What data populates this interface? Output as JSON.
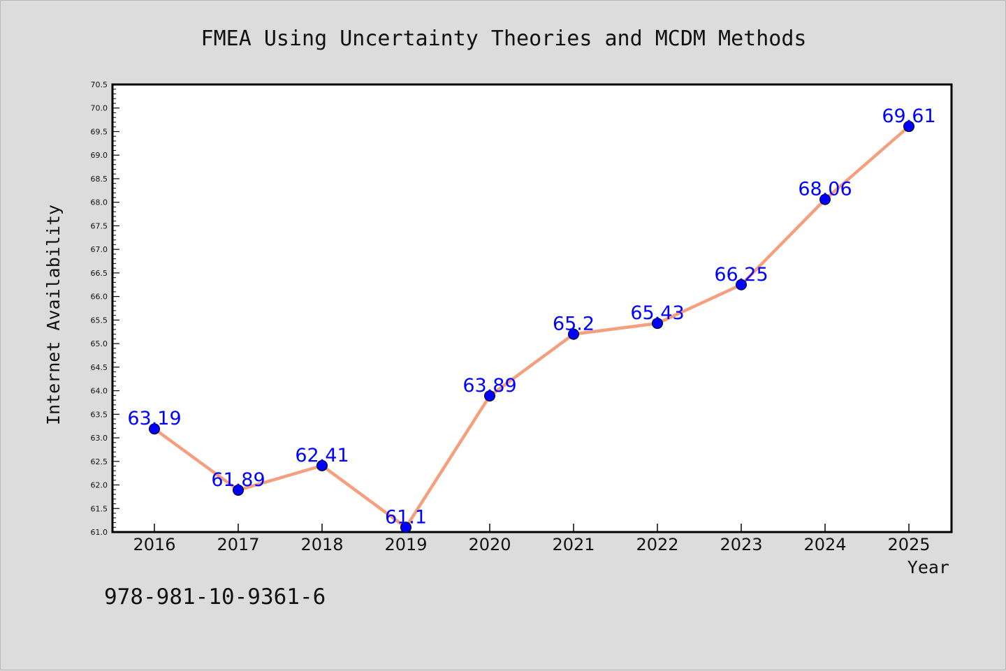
{
  "chart_data": {
    "type": "line",
    "title": "FMEA Using Uncertainty Theories and MCDM Methods",
    "xlabel": "Year",
    "ylabel": "Internet Availability",
    "categories": [
      "2016",
      "2017",
      "2018",
      "2019",
      "2020",
      "2021",
      "2022",
      "2023",
      "2024",
      "2025"
    ],
    "series": [
      {
        "values": [
          63.19,
          61.89,
          62.41,
          61.1,
          63.89,
          65.2,
          65.43,
          66.25,
          68.06,
          69.61
        ],
        "labels": [
          "63.19",
          "61.89",
          "62.41",
          "61.1",
          "63.89",
          "65.2",
          "65.43",
          "66.25",
          "68.06",
          "69.61"
        ],
        "line_color": "#f4a07f",
        "marker_color": "#0000ff"
      }
    ],
    "ylim": [
      61.0,
      70.5
    ],
    "yticks": [
      "61.0",
      "61.5",
      "62.0",
      "62.5",
      "63.0",
      "63.5",
      "64.0",
      "64.5",
      "65.0",
      "65.5",
      "66.0",
      "66.5",
      "67.0",
      "67.5",
      "68.0",
      "68.5",
      "69.0",
      "69.5",
      "70.0",
      "70.5"
    ],
    "grid": false,
    "legend": "none"
  },
  "footnote": "978-981-10-9361-6",
  "colors": {
    "background": "#dcdcdc",
    "plot_area": "#ffffff",
    "label_color": "#0000ff"
  }
}
